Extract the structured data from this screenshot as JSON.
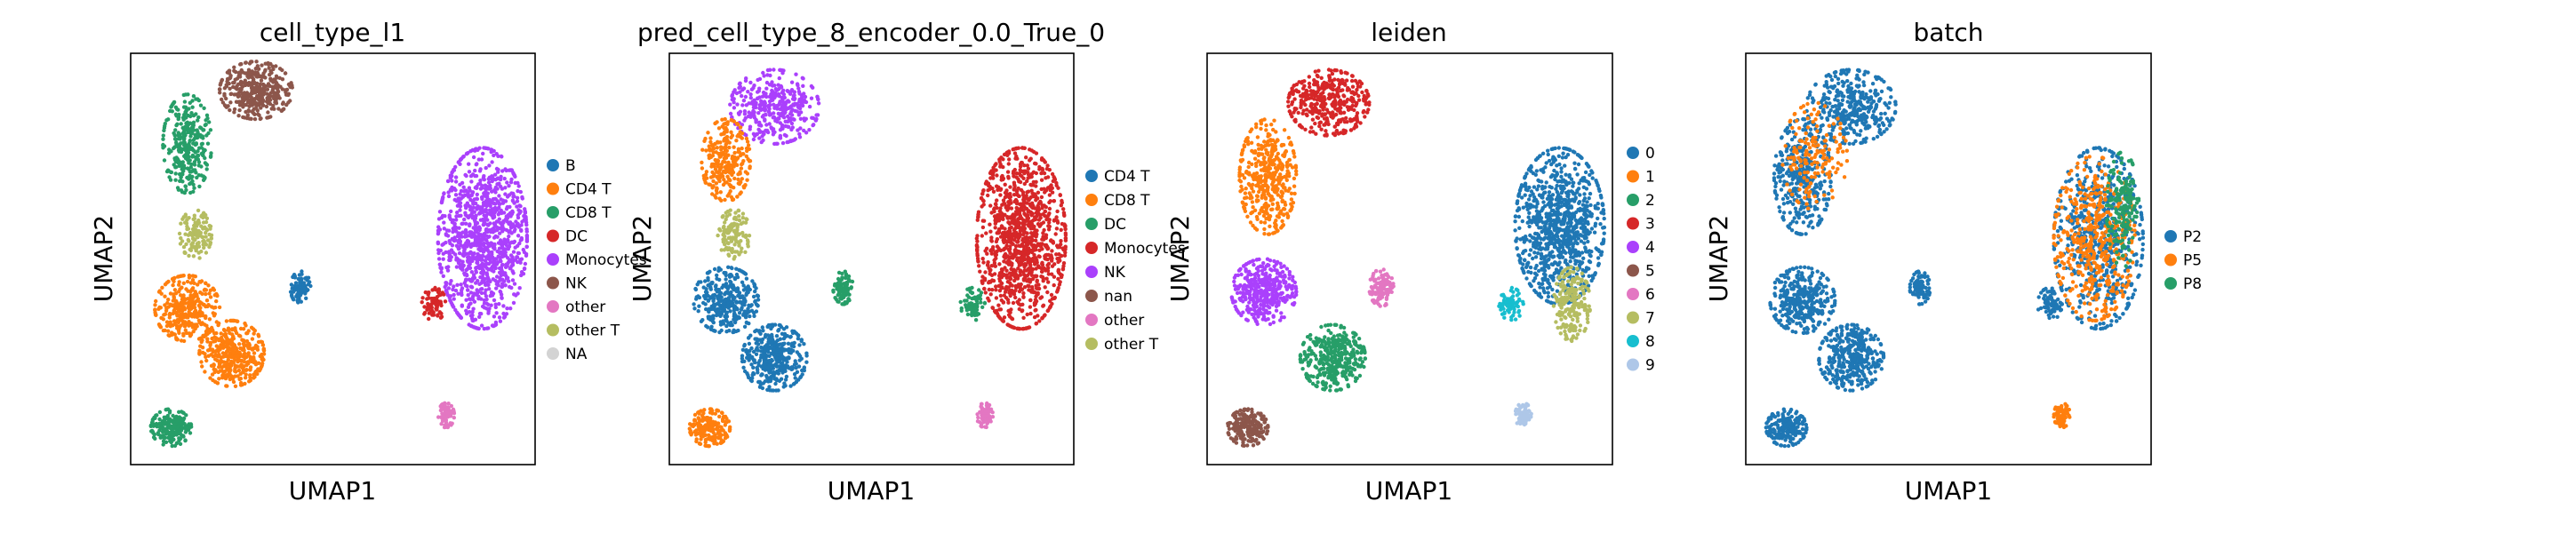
{
  "chart_data": [
    {
      "type": "scatter",
      "title": "cell_type_l1",
      "xlabel": "UMAP1",
      "ylabel": "UMAP2",
      "grid": false,
      "legend_placement": "right",
      "legend": [
        {
          "name": "B",
          "color": "#1f77b4"
        },
        {
          "name": "CD4 T",
          "color": "#ff7f0e"
        },
        {
          "name": "CD8 T",
          "color": "#279e68"
        },
        {
          "name": "DC",
          "color": "#d62728"
        },
        {
          "name": "Monocytes",
          "color": "#aa40fc"
        },
        {
          "name": "NK",
          "color": "#8c564b"
        },
        {
          "name": "other",
          "color": "#e377c2"
        },
        {
          "name": "other T",
          "color": "#b5bd61"
        },
        {
          "name": "NA",
          "color": "#d3d3d3"
        }
      ],
      "clusters": [
        {
          "label": "NK",
          "color": "#8c564b",
          "cx": 0.31,
          "cy": 0.09,
          "rx": 0.09,
          "ry": 0.07,
          "density": 380
        },
        {
          "label": "CD8 T",
          "color": "#279e68",
          "cx": 0.14,
          "cy": 0.22,
          "rx": 0.06,
          "ry": 0.12,
          "density": 320
        },
        {
          "label": "other T",
          "color": "#b5bd61",
          "cx": 0.16,
          "cy": 0.44,
          "rx": 0.04,
          "ry": 0.06,
          "density": 120
        },
        {
          "label": "CD4 T",
          "color": "#ff7f0e",
          "cx": 0.14,
          "cy": 0.62,
          "rx": 0.08,
          "ry": 0.08,
          "density": 340
        },
        {
          "label": "CD4 T",
          "color": "#ff7f0e",
          "cx": 0.25,
          "cy": 0.73,
          "rx": 0.08,
          "ry": 0.08,
          "density": 380
        },
        {
          "label": "CD8 T",
          "color": "#279e68",
          "cx": 0.1,
          "cy": 0.91,
          "rx": 0.05,
          "ry": 0.045,
          "density": 200
        },
        {
          "label": "B",
          "color": "#1f77b4",
          "cx": 0.42,
          "cy": 0.57,
          "rx": 0.025,
          "ry": 0.04,
          "density": 90
        },
        {
          "label": "Monocytes",
          "color": "#aa40fc",
          "cx": 0.87,
          "cy": 0.45,
          "rx": 0.11,
          "ry": 0.22,
          "density": 1100
        },
        {
          "label": "DC",
          "color": "#d62728",
          "cx": 0.75,
          "cy": 0.61,
          "rx": 0.03,
          "ry": 0.04,
          "density": 70
        },
        {
          "label": "other",
          "color": "#e377c2",
          "cx": 0.78,
          "cy": 0.88,
          "rx": 0.02,
          "ry": 0.03,
          "density": 70
        }
      ]
    },
    {
      "type": "scatter",
      "title": "pred_cell_type_8_encoder_0.0_True_0",
      "xlabel": "UMAP1",
      "ylabel": "UMAP2",
      "grid": false,
      "legend_placement": "right",
      "legend": [
        {
          "name": "CD4 T",
          "color": "#1f77b4"
        },
        {
          "name": "CD8 T",
          "color": "#ff7f0e"
        },
        {
          "name": "DC",
          "color": "#279e68"
        },
        {
          "name": "Monocytes",
          "color": "#d62728"
        },
        {
          "name": "NK",
          "color": "#aa40fc"
        },
        {
          "name": "nan",
          "color": "#8c564b"
        },
        {
          "name": "other",
          "color": "#e377c2"
        },
        {
          "name": "other T",
          "color": "#b5bd61"
        }
      ],
      "clusters": [
        {
          "label": "NK",
          "color": "#aa40fc",
          "cx": 0.26,
          "cy": 0.13,
          "rx": 0.11,
          "ry": 0.09,
          "density": 380
        },
        {
          "label": "CD8 T",
          "color": "#ff7f0e",
          "cx": 0.14,
          "cy": 0.26,
          "rx": 0.06,
          "ry": 0.1,
          "density": 260
        },
        {
          "label": "other T",
          "color": "#b5bd61",
          "cx": 0.16,
          "cy": 0.44,
          "rx": 0.04,
          "ry": 0.06,
          "density": 120
        },
        {
          "label": "CD4 T",
          "color": "#1f77b4",
          "cx": 0.14,
          "cy": 0.6,
          "rx": 0.08,
          "ry": 0.08,
          "density": 340
        },
        {
          "label": "CD4 T",
          "color": "#1f77b4",
          "cx": 0.26,
          "cy": 0.74,
          "rx": 0.08,
          "ry": 0.08,
          "density": 380
        },
        {
          "label": "CD8 T",
          "color": "#ff7f0e",
          "cx": 0.1,
          "cy": 0.91,
          "rx": 0.05,
          "ry": 0.045,
          "density": 200
        },
        {
          "label": "DC",
          "color": "#279e68",
          "cx": 0.43,
          "cy": 0.57,
          "rx": 0.025,
          "ry": 0.04,
          "density": 90
        },
        {
          "label": "Monocytes",
          "color": "#d62728",
          "cx": 0.87,
          "cy": 0.45,
          "rx": 0.11,
          "ry": 0.22,
          "density": 1100
        },
        {
          "label": "DC",
          "color": "#279e68",
          "cx": 0.75,
          "cy": 0.61,
          "rx": 0.03,
          "ry": 0.04,
          "density": 70
        },
        {
          "label": "other",
          "color": "#e377c2",
          "cx": 0.78,
          "cy": 0.88,
          "rx": 0.02,
          "ry": 0.03,
          "density": 70
        }
      ]
    },
    {
      "type": "scatter",
      "title": "leiden",
      "xlabel": "UMAP1",
      "ylabel": "UMAP2",
      "grid": false,
      "legend_placement": "right",
      "legend": [
        {
          "name": "0",
          "color": "#1f77b4"
        },
        {
          "name": "1",
          "color": "#ff7f0e"
        },
        {
          "name": "2",
          "color": "#279e68"
        },
        {
          "name": "3",
          "color": "#d62728"
        },
        {
          "name": "4",
          "color": "#aa40fc"
        },
        {
          "name": "5",
          "color": "#8c564b"
        },
        {
          "name": "6",
          "color": "#e377c2"
        },
        {
          "name": "7",
          "color": "#b5bd61"
        },
        {
          "name": "8",
          "color": "#17becf"
        },
        {
          "name": "9",
          "color": "#aec7e8"
        }
      ],
      "clusters": [
        {
          "label": "3",
          "color": "#d62728",
          "cx": 0.3,
          "cy": 0.12,
          "rx": 0.1,
          "ry": 0.08,
          "density": 380
        },
        {
          "label": "1",
          "color": "#ff7f0e",
          "cx": 0.15,
          "cy": 0.3,
          "rx": 0.07,
          "ry": 0.14,
          "density": 420
        },
        {
          "label": "4",
          "color": "#aa40fc",
          "cx": 0.14,
          "cy": 0.58,
          "rx": 0.08,
          "ry": 0.08,
          "density": 380
        },
        {
          "label": "2",
          "color": "#279e68",
          "cx": 0.31,
          "cy": 0.74,
          "rx": 0.08,
          "ry": 0.08,
          "density": 380
        },
        {
          "label": "5",
          "color": "#8c564b",
          "cx": 0.1,
          "cy": 0.91,
          "rx": 0.05,
          "ry": 0.045,
          "density": 200
        },
        {
          "label": "6",
          "color": "#e377c2",
          "cx": 0.43,
          "cy": 0.57,
          "rx": 0.03,
          "ry": 0.045,
          "density": 110
        },
        {
          "label": "0",
          "color": "#1f77b4",
          "cx": 0.87,
          "cy": 0.42,
          "rx": 0.11,
          "ry": 0.19,
          "density": 950
        },
        {
          "label": "7",
          "color": "#b5bd61",
          "cx": 0.9,
          "cy": 0.61,
          "rx": 0.045,
          "ry": 0.09,
          "density": 200
        },
        {
          "label": "8",
          "color": "#17becf",
          "cx": 0.75,
          "cy": 0.61,
          "rx": 0.03,
          "ry": 0.04,
          "density": 70
        },
        {
          "label": "9",
          "color": "#aec7e8",
          "cx": 0.78,
          "cy": 0.88,
          "rx": 0.02,
          "ry": 0.03,
          "density": 70
        }
      ]
    },
    {
      "type": "scatter",
      "title": "batch",
      "xlabel": "UMAP1",
      "ylabel": "UMAP2",
      "grid": false,
      "legend_placement": "right",
      "legend": [
        {
          "name": "P2",
          "color": "#1f77b4"
        },
        {
          "name": "P5",
          "color": "#ff7f0e"
        },
        {
          "name": "P8",
          "color": "#279e68"
        }
      ],
      "clusters": [
        {
          "label": "P2",
          "color": "#1f77b4",
          "cx": 0.26,
          "cy": 0.13,
          "rx": 0.11,
          "ry": 0.09,
          "density": 380
        },
        {
          "label": "P2",
          "color": "#1f77b4",
          "cx": 0.14,
          "cy": 0.3,
          "rx": 0.07,
          "ry": 0.14,
          "density": 380
        },
        {
          "label": "P2",
          "color": "#1f77b4",
          "cx": 0.14,
          "cy": 0.6,
          "rx": 0.08,
          "ry": 0.08,
          "density": 340
        },
        {
          "label": "P2",
          "color": "#1f77b4",
          "cx": 0.26,
          "cy": 0.74,
          "rx": 0.08,
          "ry": 0.08,
          "density": 380
        },
        {
          "label": "P2",
          "color": "#1f77b4",
          "cx": 0.1,
          "cy": 0.91,
          "rx": 0.05,
          "ry": 0.045,
          "density": 200
        },
        {
          "label": "P2",
          "color": "#1f77b4",
          "cx": 0.43,
          "cy": 0.57,
          "rx": 0.025,
          "ry": 0.04,
          "density": 90
        },
        {
          "label": "P2",
          "color": "#1f77b4",
          "cx": 0.87,
          "cy": 0.45,
          "rx": 0.11,
          "ry": 0.22,
          "density": 600
        },
        {
          "label": "P5",
          "color": "#ff7f0e",
          "cx": 0.86,
          "cy": 0.45,
          "rx": 0.1,
          "ry": 0.2,
          "density": 450
        },
        {
          "label": "P8",
          "color": "#279e68",
          "cx": 0.93,
          "cy": 0.38,
          "rx": 0.04,
          "ry": 0.14,
          "density": 160
        },
        {
          "label": "P5",
          "color": "#ff7f0e",
          "cx": 0.17,
          "cy": 0.25,
          "rx": 0.08,
          "ry": 0.13,
          "density": 160
        },
        {
          "label": "P2",
          "color": "#1f77b4",
          "cx": 0.75,
          "cy": 0.61,
          "rx": 0.03,
          "ry": 0.04,
          "density": 70
        },
        {
          "label": "P5",
          "color": "#ff7f0e",
          "cx": 0.78,
          "cy": 0.88,
          "rx": 0.02,
          "ry": 0.03,
          "density": 70
        }
      ]
    }
  ]
}
